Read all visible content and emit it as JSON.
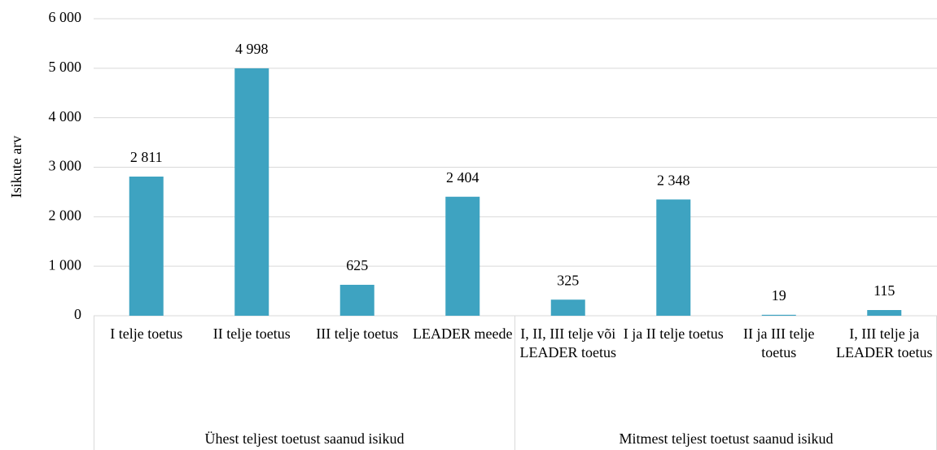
{
  "chart_data": {
    "type": "bar",
    "y_label": "Isikute arv",
    "color": "#3ea3c1",
    "grid": true,
    "ylim": [
      0,
      6000
    ],
    "yticks": [
      {
        "value": 0,
        "label": "0"
      },
      {
        "value": 1000,
        "label": "1 000"
      },
      {
        "value": 2000,
        "label": "2 000"
      },
      {
        "value": 3000,
        "label": "3 000"
      },
      {
        "value": 4000,
        "label": "4 000"
      },
      {
        "value": 5000,
        "label": "5 000"
      },
      {
        "value": 6000,
        "label": "6 000"
      }
    ],
    "groups": [
      {
        "name": "Ühest teljest toetust saanud isikud",
        "categories": [
          "I telje toetus",
          "II telje toetus",
          "III telje toetus",
          "LEADER meede"
        ],
        "values": [
          2811,
          4998,
          625,
          2404
        ],
        "value_labels": [
          "2 811",
          "4 998",
          "625",
          "2 404"
        ]
      },
      {
        "name": "Mitmest teljest toetust saanud isikud",
        "categories": [
          "I, II, III telje või LEADER toetus",
          "I ja II telje toetus",
          "II ja III telje toetus",
          "I, III telje ja LEADER toetus"
        ],
        "values": [
          325,
          2348,
          19,
          115
        ],
        "value_labels": [
          "325",
          "2 348",
          "19",
          "115"
        ]
      }
    ]
  }
}
